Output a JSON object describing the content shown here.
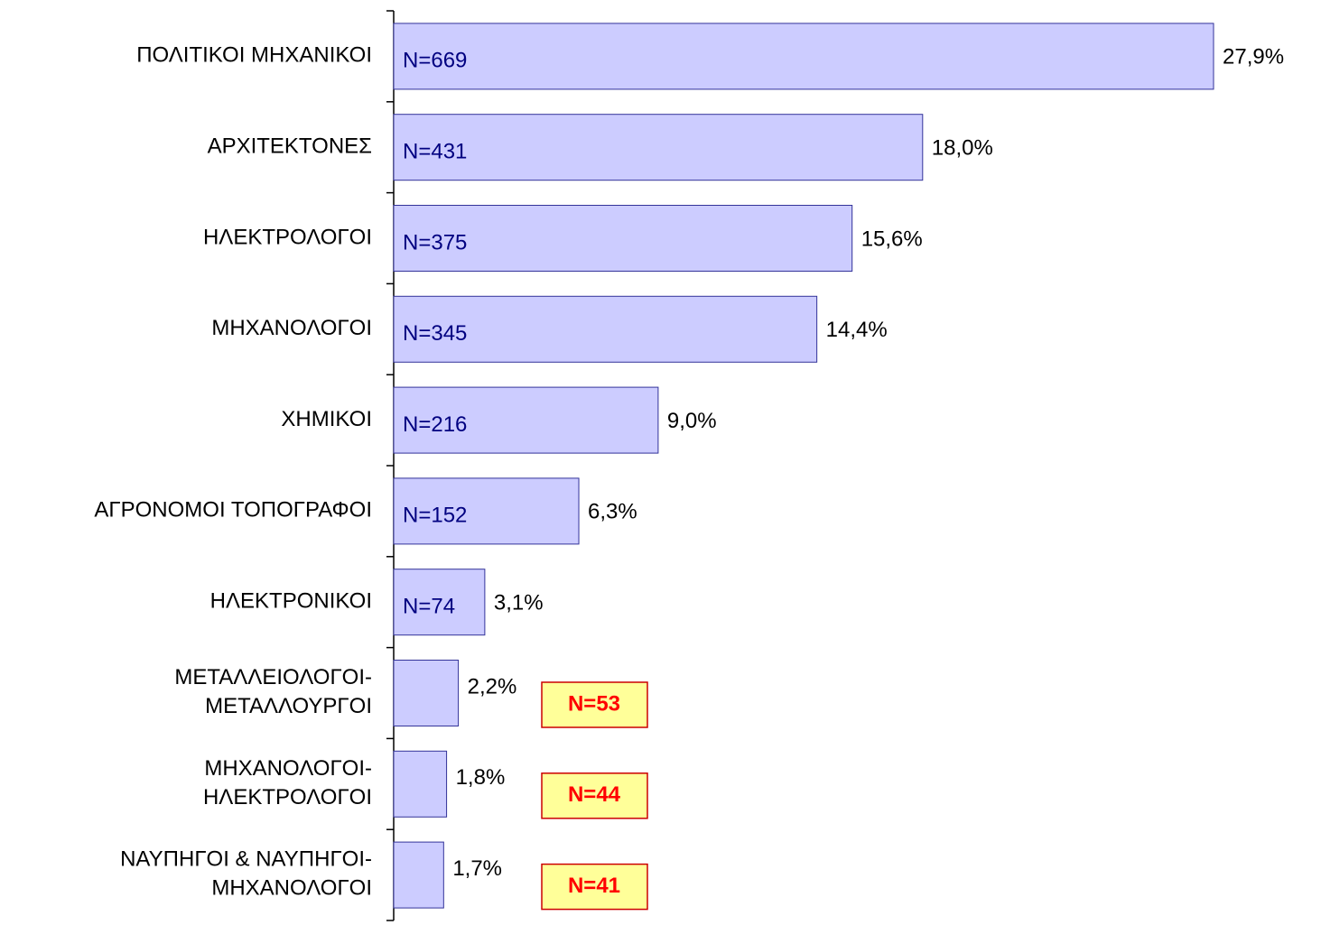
{
  "chart_data": {
    "type": "bar",
    "orientation": "horizontal",
    "categories": [
      "ΠΟΛΙΤΙΚΟΙ ΜΗΧΑΝΙΚΟΙ",
      "ΑΡΧΙΤΕΚΤΟΝΕΣ",
      "ΗΛΕΚΤΡΟΛΟΓΟΙ",
      "ΜΗΧΑΝΟΛΟΓΟΙ",
      "ΧΗΜΙΚΟΙ",
      "ΑΓΡΟΝΟΜΟΙ ΤΟΠΟΓΡΑΦΟΙ",
      "ΗΛΕΚΤΡΟΝΙΚΟΙ",
      "ΜΕΤΑΛΛΕΙΟΛΟΓΟΙ-\nΜΕΤΑΛΛΟΥΡΓΟΙ",
      "ΜΗΧΑΝΟΛΟΓΟΙ-\nΗΛΕΚΤΡΟΛΟΓΟΙ",
      "ΝΑΥΠΗΓΟΙ & ΝΑΥΠΗΓΟΙ-\nΜΗΧΑΝΟΛΟΓΟΙ"
    ],
    "values": [
      27.9,
      18.0,
      15.6,
      14.4,
      9.0,
      6.3,
      3.1,
      2.2,
      1.8,
      1.7
    ],
    "value_labels": [
      "27,9%",
      "18,0%",
      "15,6%",
      "14,4%",
      "9,0%",
      "6,3%",
      "3,1%",
      "2,2%",
      "1,8%",
      "1,7%"
    ],
    "annotations": [
      "N=669",
      "N=431",
      "N=375",
      "N=345",
      "N=216",
      "N=152",
      "N=74",
      "N=53",
      "N=44",
      "N=41"
    ],
    "color": "#ccccff"
  }
}
